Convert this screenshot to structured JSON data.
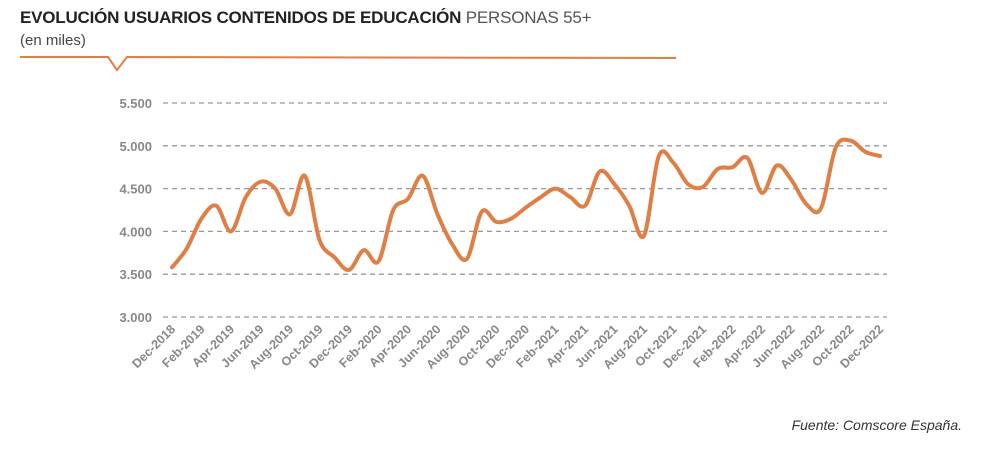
{
  "header": {
    "title_bold": "EVOLUCIÓN USUARIOS CONTENIDOS DE EDUCACIÓN",
    "title_light": "PERSONAS 55+",
    "subtitle": "(en miles)",
    "accent_color": "#E07F45"
  },
  "footer": {
    "source": "Fuente: Comscore España."
  },
  "chart_data": {
    "type": "line",
    "title": "EVOLUCIÓN USUARIOS CONTENIDOS DE EDUCACIÓN PERSONAS 55+",
    "ylabel": "(en miles)",
    "xlabel": "",
    "ylim": [
      3000,
      5500
    ],
    "yticks": [
      "3.000",
      "3.500",
      "4.000",
      "4.500",
      "5.000",
      "5.500"
    ],
    "ytick_values": [
      3000,
      3500,
      4000,
      4500,
      5000,
      5500
    ],
    "grid": true,
    "legend": "none",
    "line_color": "#E07F45",
    "xtick_labels": [
      "Dec-2018",
      "Feb-2019",
      "Apr-2019",
      "Jun-2019",
      "Aug-2019",
      "Oct-2019",
      "Dec-2019",
      "Feb-2020",
      "Apr-2020",
      "Jun-2020",
      "Aug-2020",
      "Oct-2020",
      "Dec-2020",
      "Feb-2021",
      "Apr-2021",
      "Jun-2021",
      "Aug-2021",
      "Oct-2021",
      "Dec-2021",
      "Feb-2022",
      "Apr-2022",
      "Jun-2022",
      "Aug-2022",
      "Oct-2022",
      "Dec-2022"
    ],
    "x": [
      "Dec-2018",
      "Jan-2019",
      "Feb-2019",
      "Mar-2019",
      "Apr-2019",
      "May-2019",
      "Jun-2019",
      "Jul-2019",
      "Aug-2019",
      "Sep-2019",
      "Oct-2019",
      "Nov-2019",
      "Dec-2019",
      "Jan-2020",
      "Feb-2020",
      "Mar-2020",
      "Apr-2020",
      "May-2020",
      "Jun-2020",
      "Jul-2020",
      "Aug-2020",
      "Sep-2020",
      "Oct-2020",
      "Nov-2020",
      "Dec-2020",
      "Jan-2021",
      "Feb-2021",
      "Mar-2021",
      "Apr-2021",
      "May-2021",
      "Jun-2021",
      "Jul-2021",
      "Aug-2021",
      "Sep-2021",
      "Oct-2021",
      "Nov-2021",
      "Dec-2021",
      "Jan-2022",
      "Feb-2022",
      "Mar-2022",
      "Apr-2022",
      "May-2022",
      "Jun-2022",
      "Jul-2022",
      "Aug-2022",
      "Sep-2022",
      "Oct-2022",
      "Nov-2022",
      "Dec-2022"
    ],
    "series": [
      {
        "values": [
          3580,
          3800,
          4150,
          4300,
          4000,
          4400,
          4580,
          4500,
          4200,
          4650,
          3900,
          3700,
          3550,
          3780,
          3650,
          4250,
          4380,
          4650,
          4200,
          3850,
          3680,
          4230,
          4110,
          4150,
          4280,
          4400,
          4500,
          4400,
          4300,
          4700,
          4550,
          4300,
          3950,
          4880,
          4800,
          4550,
          4520,
          4730,
          4750,
          4860,
          4450,
          4770,
          4600,
          4320,
          4270,
          4980,
          5060,
          4930,
          4880
        ]
      }
    ]
  }
}
